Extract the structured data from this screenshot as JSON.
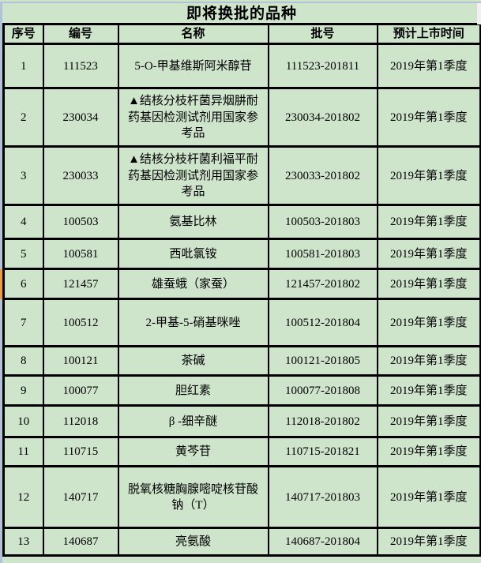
{
  "title": "即将换批的品种",
  "table": {
    "columns": [
      "序号",
      "编号",
      "名称",
      "批号",
      "预计上市时间"
    ],
    "rows": [
      {
        "no": "1",
        "code": "111523",
        "name": "5-O-甲基维斯阿米醇苷",
        "batch": "111523-201811",
        "listing": "2019年第1季度"
      },
      {
        "no": "2",
        "code": "230034",
        "name": "▲结核分枝杆菌异烟肼耐药基因检测试剂用国家参考品",
        "batch": "230034-201802",
        "listing": "2019年第1季度"
      },
      {
        "no": "3",
        "code": "230033",
        "name": "▲结核分枝杆菌利福平耐药基因检测试剂用国家参考品",
        "batch": "230033-201802",
        "listing": "2019年第1季度"
      },
      {
        "no": "4",
        "code": "100503",
        "name": "氨基比林",
        "batch": "100503-201803",
        "listing": "2019年第1季度"
      },
      {
        "no": "5",
        "code": "100581",
        "name": "西吡氯铵",
        "batch": "100581-201803",
        "listing": "2019年第1季度"
      },
      {
        "no": "6",
        "code": "121457",
        "name": "雄蚕蛾（家蚕）",
        "batch": "121457-201802",
        "listing": "2019年第1季度"
      },
      {
        "no": "7",
        "code": "100512",
        "name": "2-甲基-5-硝基咪唑",
        "batch": "100512-201804",
        "listing": "2019年第1季度"
      },
      {
        "no": "8",
        "code": "100121",
        "name": "茶碱",
        "batch": "100121-201805",
        "listing": "2019年第1季度"
      },
      {
        "no": "9",
        "code": "100077",
        "name": "胆红素",
        "batch": "100077-201808",
        "listing": "2019年第1季度"
      },
      {
        "no": "10",
        "code": "112018",
        "name": "β -细辛醚",
        "batch": "112018-201802",
        "listing": "2019年第1季度"
      },
      {
        "no": "11",
        "code": "110715",
        "name": "黄芩苷",
        "batch": "110715-201821",
        "listing": "2019年第1季度"
      },
      {
        "no": "12",
        "code": "140717",
        "name": "脱氧核糖胸腺嘧啶核苷酸钠（T）",
        "batch": "140717-201803",
        "listing": "2019年第1季度"
      },
      {
        "no": "13",
        "code": "140687",
        "name": "亮氨酸",
        "batch": "140687-201804",
        "listing": "2019年第1季度"
      }
    ]
  },
  "colors": {
    "cell_bg": "#cee5cc",
    "window_edge": "#b2c3d6",
    "row6_marker": "#ee9d3b",
    "grid": "#000000"
  }
}
